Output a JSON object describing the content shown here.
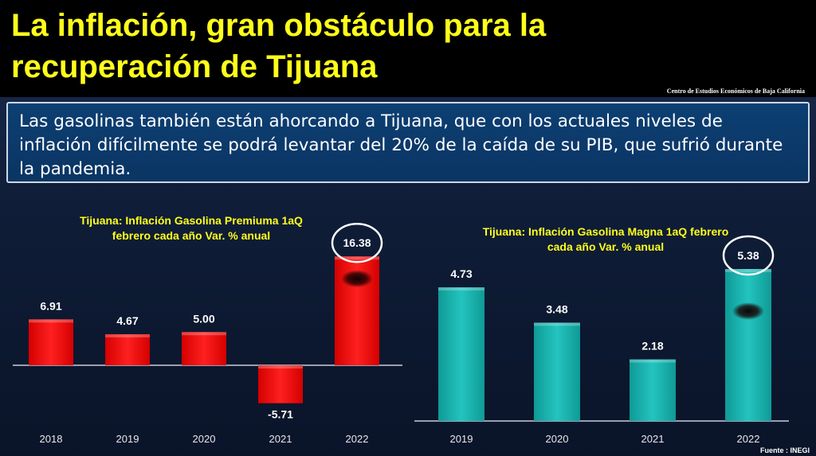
{
  "header": {
    "title_line1": "La inflación, gran obstáculo para la",
    "title_line2": "recuperación de Tijuana",
    "source": "Centro de Estudios Económicos de Baja California"
  },
  "intro_text": "Las gasolinas también están ahorcando a Tijuana, que con los actuales niveles de inflación difícilmente se podrá levantar del 20% de la caída de su PIB, que sufrió durante la pandemia.",
  "footer": {
    "source": "Fuente : INEGI"
  },
  "colors": {
    "premium_bar": "#ff1a1a",
    "magna_bar": "#1fb8b3",
    "title_yellow": "#ffff1a"
  },
  "chart_data": [
    {
      "type": "bar",
      "title_line1": "Tijuana: Inflación Gasolina Premiuma 1aQ",
      "title_line2": "febrero cada año Var. % anual",
      "categories": [
        "2018",
        "2019",
        "2020",
        "2021",
        "2022"
      ],
      "values": [
        6.91,
        4.67,
        5.0,
        -5.71,
        16.38
      ],
      "labels": [
        "6.91",
        "4.67",
        "5.00",
        "-5.71",
        "16.38"
      ],
      "highlight": "2022",
      "ylim": [
        -6,
        17
      ]
    },
    {
      "type": "bar",
      "title_line1": "Tijuana: Inflación Gasolina Magna 1aQ febrero",
      "title_line2": "cada año Var. % anual",
      "categories": [
        "2019",
        "2020",
        "2021",
        "2022"
      ],
      "values": [
        4.73,
        3.48,
        2.18,
        5.38
      ],
      "labels": [
        "4.73",
        "3.48",
        "2.18",
        "5.38"
      ],
      "highlight": "2022",
      "ylim": [
        0,
        5.5
      ]
    }
  ]
}
